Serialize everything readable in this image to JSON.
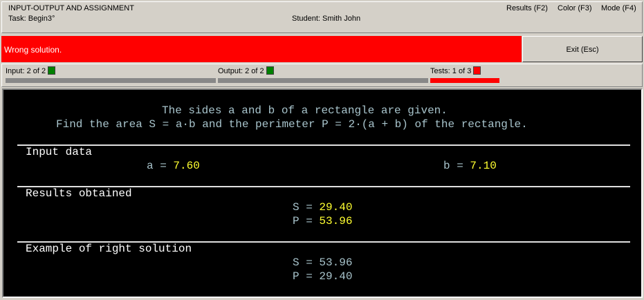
{
  "header": {
    "title": "INPUT-OUTPUT AND ASSIGNMENT",
    "task": "Task: Begin3°",
    "student": "Student: Smith John",
    "menu": [
      "Results (F2)",
      "Color (F3)",
      "Mode (F4)"
    ]
  },
  "status": {
    "message": "Wrong solution.",
    "exit_label": "Exit (Esc)",
    "status_color": "#ff0000"
  },
  "progress": {
    "input": "Input: 2 of 2",
    "output": "Output: 2 of 2",
    "tests": "Tests: 1 of 3",
    "input_fraction": 1,
    "output_fraction": 1,
    "tests_fraction": 0.333
  },
  "task": {
    "line1": "The sides a and b of a rectangle are given.",
    "line2": "Find the area S = a·b and the perimeter P = 2·(a + b) of the rectangle."
  },
  "input_section": {
    "title": "Input data",
    "a_label": "a = ",
    "a": "7.60",
    "b_label": "b = ",
    "b": "7.10"
  },
  "results_section": {
    "title": "Results obtained",
    "s_label": "S = ",
    "s": "29.40",
    "p_label": "P = ",
    "p": "53.96"
  },
  "example_section": {
    "title": "Example of right solution",
    "s_label": "S = ",
    "s": "53.96",
    "p_label": "P = ",
    "p": "29.40"
  }
}
